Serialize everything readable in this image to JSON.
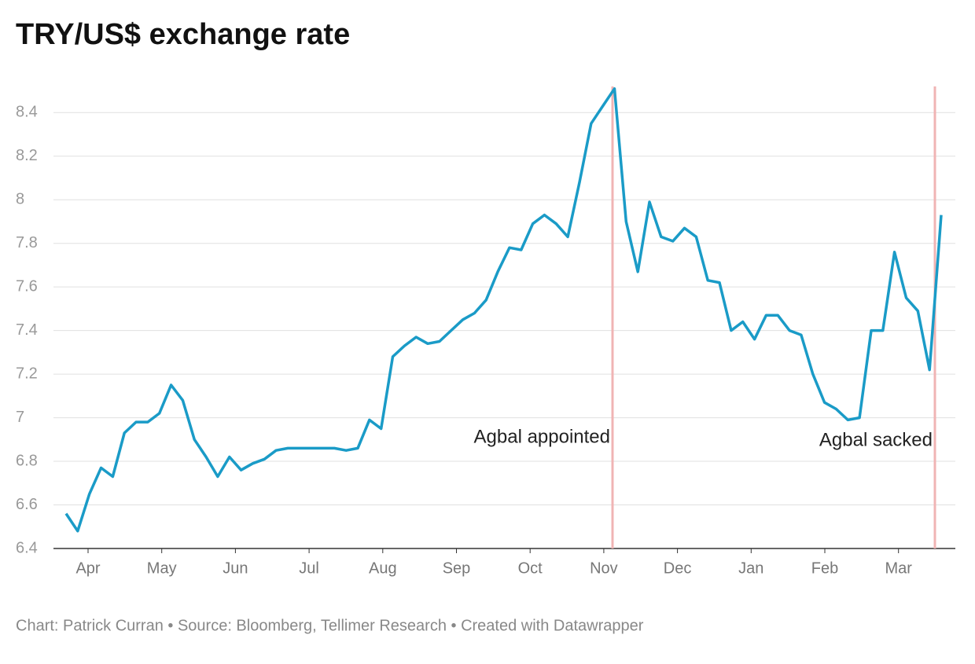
{
  "chart_data": {
    "type": "line",
    "title": "TRY/US$ exchange rate",
    "source": "Chart: Patrick Curran • Source: Bloomberg, Tellimer Research • Created with Datawrapper",
    "xtick_labels": [
      "Apr",
      "May",
      "Jun",
      "Jul",
      "Aug",
      "Sep",
      "Oct",
      "Nov",
      "Dec",
      "Jan",
      "Feb",
      "Mar"
    ],
    "series": [
      {
        "name": "TRY/US$",
        "color": "#1a9bc7",
        "values": [
          6.56,
          6.48,
          6.65,
          6.77,
          6.73,
          6.93,
          6.98,
          6.98,
          7.02,
          7.15,
          7.08,
          6.9,
          6.82,
          6.73,
          6.82,
          6.76,
          6.79,
          6.81,
          6.85,
          6.86,
          6.86,
          6.86,
          6.86,
          6.86,
          6.85,
          6.86,
          6.99,
          6.95,
          7.28,
          7.33,
          7.37,
          7.34,
          7.35,
          7.4,
          7.45,
          7.48,
          7.54,
          7.67,
          7.78,
          7.77,
          7.89,
          7.93,
          7.89,
          7.83,
          8.08,
          8.35,
          8.43,
          8.51,
          7.9,
          7.67,
          7.99,
          7.83,
          7.81,
          7.87,
          7.83,
          7.63,
          7.62,
          7.4,
          7.44,
          7.36,
          7.47,
          7.47,
          7.4,
          7.38,
          7.2,
          7.07,
          7.04,
          6.99,
          7.0,
          7.4,
          7.4,
          7.76,
          7.55,
          7.49,
          7.22,
          7.93
        ]
      }
    ],
    "ylim": [
      6.4,
      8.52
    ],
    "yticks": [
      6.4,
      6.6,
      6.8,
      7,
      7.2,
      7.4,
      7.6,
      7.8,
      8,
      8.2,
      8.4
    ],
    "grid": true,
    "annotations": [
      "Agbal appointed",
      "Agbal sacked"
    ],
    "annotation_color": "#f0b4b4"
  }
}
